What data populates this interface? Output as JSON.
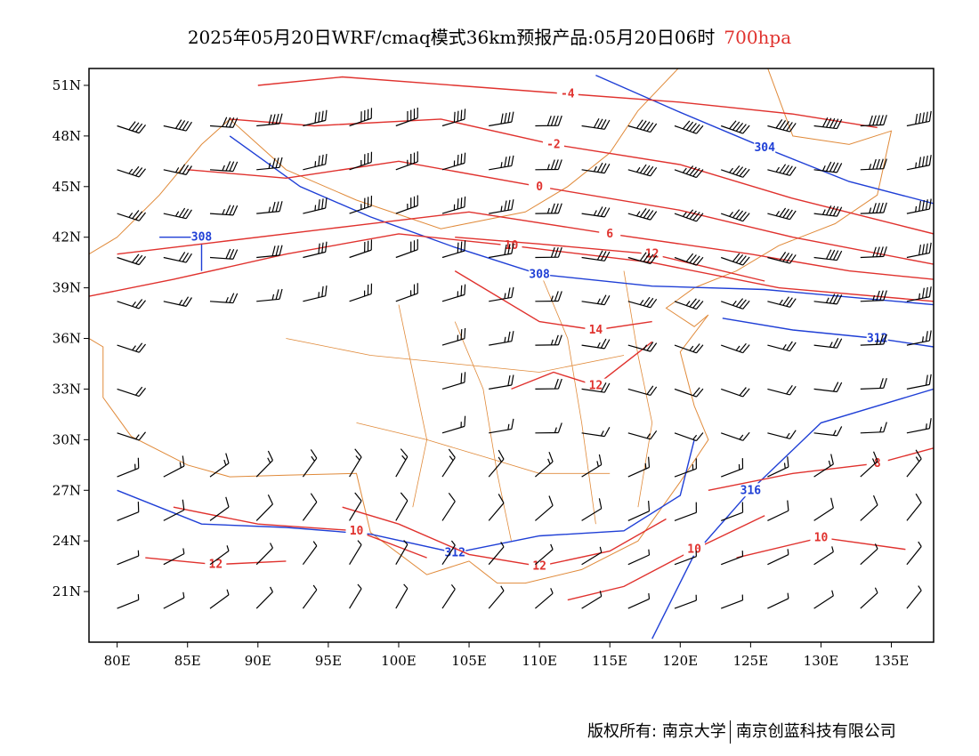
{
  "title": {
    "main": "2025年05月20日WRF/cmaq模式36km预报产品:05月20日06时",
    "level": "700hpa"
  },
  "footer": {
    "copyright_label": "版权所有:",
    "org1": "南京大学",
    "org2": "南京创蓝科技有限公司"
  },
  "map_data": {
    "lon_range": [
      78,
      138
    ],
    "lat_range": [
      18,
      52
    ],
    "lon_ticks": [
      "80E",
      "85E",
      "90E",
      "95E",
      "100E",
      "105E",
      "110E",
      "115E",
      "120E",
      "125E",
      "130E",
      "135E"
    ],
    "lat_ticks": [
      "51N",
      "48N",
      "45N",
      "42N",
      "39N",
      "36N",
      "33N",
      "30N",
      "27N",
      "24N",
      "21N"
    ],
    "colors": {
      "temperature": "#e0322e",
      "geopotential": "#1f3fd6",
      "boundary": "#e08a3a",
      "wind": "#000000"
    },
    "temperature_contours": [
      {
        "label": "-4",
        "pts": [
          [
            90,
            51
          ],
          [
            96,
            51.5
          ],
          [
            104,
            51
          ],
          [
            112,
            50.5
          ],
          [
            120,
            50
          ],
          [
            128,
            49.3
          ],
          [
            134,
            48.5
          ]
        ]
      },
      {
        "label": "-2",
        "pts": [
          [
            88,
            49
          ],
          [
            94,
            48.6
          ],
          [
            103,
            49
          ],
          [
            111,
            47.5
          ],
          [
            120,
            46.3
          ],
          [
            128,
            44.3
          ],
          [
            138,
            42.2
          ]
        ]
      },
      {
        "label": "0",
        "pts": [
          [
            85,
            46
          ],
          [
            92,
            45.5
          ],
          [
            100,
            46.5
          ],
          [
            110,
            45
          ],
          [
            120,
            43.6
          ],
          [
            128,
            42
          ],
          [
            138,
            40.4
          ]
        ]
      },
      {
        "label": "6",
        "pts": [
          [
            80,
            41
          ],
          [
            87,
            41.7
          ],
          [
            95,
            42.5
          ],
          [
            105,
            43.5
          ],
          [
            115,
            42.2
          ],
          [
            125,
            41
          ],
          [
            132,
            40
          ],
          [
            138,
            39.5
          ]
        ]
      },
      {
        "label": "10",
        "pts": [
          [
            78,
            38.5
          ],
          [
            84,
            39.5
          ],
          [
            92,
            41
          ],
          [
            100,
            42.2
          ],
          [
            108,
            41.5
          ],
          [
            118,
            40.5
          ],
          [
            127,
            39
          ],
          [
            138,
            38.2
          ]
        ]
      },
      {
        "label": "12",
        "pts": [
          [
            104,
            42
          ],
          [
            110,
            41.6
          ],
          [
            118,
            41
          ],
          [
            126,
            39.4
          ]
        ]
      },
      {
        "label": "14",
        "pts": [
          [
            104,
            40
          ],
          [
            110,
            37
          ],
          [
            114,
            36.5
          ],
          [
            118,
            37
          ]
        ]
      },
      {
        "label": "12",
        "pts": [
          [
            96,
            26
          ],
          [
            100,
            25
          ],
          [
            105,
            23.2
          ],
          [
            110,
            22.5
          ],
          [
            115,
            23.4
          ],
          [
            119,
            25.3
          ]
        ]
      },
      {
        "label": "10",
        "pts": [
          [
            84,
            26
          ],
          [
            90,
            25
          ],
          [
            97,
            24.6
          ],
          [
            102,
            23
          ]
        ]
      },
      {
        "label": "10",
        "pts": [
          [
            112,
            20.5
          ],
          [
            116,
            21.3
          ],
          [
            121,
            23.5
          ],
          [
            126,
            25.5
          ]
        ]
      },
      {
        "label": "8",
        "pts": [
          [
            122,
            27
          ],
          [
            128,
            28
          ],
          [
            134,
            28.6
          ],
          [
            138,
            29.5
          ]
        ]
      },
      {
        "label": "10",
        "pts": [
          [
            124,
            23
          ],
          [
            130,
            24.2
          ],
          [
            136,
            23.5
          ]
        ]
      },
      {
        "label": "12",
        "pts": [
          [
            82,
            23
          ],
          [
            87,
            22.6
          ],
          [
            92,
            22.8
          ]
        ]
      },
      {
        "label": "12",
        "pts": [
          [
            108,
            33
          ],
          [
            111,
            34
          ],
          [
            114,
            33.2
          ],
          [
            118,
            35.8
          ]
        ]
      }
    ],
    "height_contours": [
      {
        "label": "304",
        "pts": [
          [
            114,
            51.6
          ],
          [
            120,
            49.4
          ],
          [
            126,
            47.3
          ],
          [
            132,
            45.3
          ],
          [
            138,
            44
          ]
        ]
      },
      {
        "label": "308",
        "pts": [
          [
            88,
            48
          ],
          [
            93,
            45
          ],
          [
            98,
            43.2
          ],
          [
            104,
            41.4
          ],
          [
            110,
            39.8
          ],
          [
            118,
            39.1
          ],
          [
            126,
            38.9
          ],
          [
            138,
            38
          ]
        ]
      },
      {
        "label": "312",
        "pts": [
          [
            123,
            37.2
          ],
          [
            128,
            36.5
          ],
          [
            134,
            36
          ],
          [
            138,
            35.5
          ]
        ]
      },
      {
        "label": "312",
        "pts": [
          [
            80,
            27
          ],
          [
            86,
            25
          ],
          [
            92,
            24.8
          ],
          [
            98,
            24.4
          ],
          [
            104,
            23.3
          ],
          [
            110,
            24.3
          ],
          [
            116,
            24.6
          ],
          [
            120,
            26.7
          ],
          [
            121,
            30
          ]
        ]
      },
      {
        "label": "316",
        "pts": [
          [
            118,
            18.2
          ],
          [
            121,
            23.2
          ],
          [
            125,
            27
          ],
          [
            130,
            31
          ],
          [
            138,
            33
          ]
        ]
      },
      {
        "label": "308",
        "pts": [
          [
            83,
            42
          ],
          [
            86,
            42
          ],
          [
            86,
            40
          ]
        ]
      }
    ],
    "boundary_outline": [
      [
        80,
        42
      ],
      [
        83,
        44.5
      ],
      [
        86,
        47.5
      ],
      [
        88,
        49
      ],
      [
        92,
        46
      ],
      [
        97,
        44.2
      ],
      [
        103,
        42.5
      ],
      [
        109,
        43.5
      ],
      [
        112,
        45
      ],
      [
        115,
        47
      ],
      [
        117,
        49.5
      ],
      [
        121,
        53
      ],
      [
        126,
        52.5
      ],
      [
        128,
        48
      ],
      [
        132,
        47.5
      ],
      [
        135,
        48.3
      ],
      [
        134,
        44.5
      ],
      [
        131,
        42.8
      ],
      [
        127,
        41.5
      ],
      [
        124,
        40
      ],
      [
        121,
        39
      ],
      [
        119,
        37.8
      ],
      [
        121,
        36.7
      ],
      [
        122,
        37.4
      ],
      [
        120,
        35.2
      ],
      [
        121,
        32
      ],
      [
        122,
        30
      ],
      [
        120,
        27.5
      ],
      [
        117,
        24
      ],
      [
        113,
        22.3
      ],
      [
        109,
        21.5
      ],
      [
        107,
        21.5
      ],
      [
        105,
        22.8
      ],
      [
        102,
        22
      ],
      [
        98,
        24.5
      ],
      [
        97,
        28
      ],
      [
        92,
        27.9
      ],
      [
        88,
        27.8
      ],
      [
        85,
        28.5
      ],
      [
        81,
        30.2
      ],
      [
        79,
        32.5
      ],
      [
        79,
        35.5
      ],
      [
        75,
        37.5
      ],
      [
        74,
        39.5
      ],
      [
        76,
        40
      ],
      [
        80,
        42
      ]
    ]
  }
}
